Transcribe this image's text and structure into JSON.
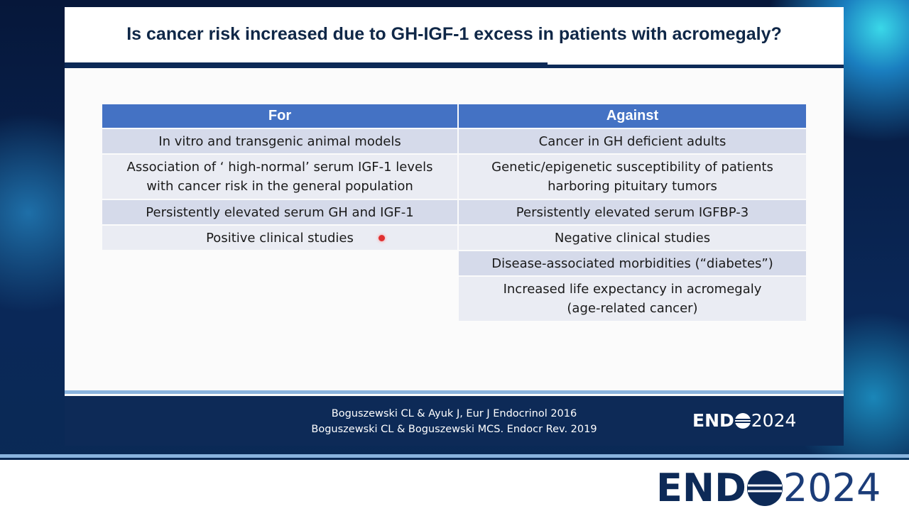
{
  "title": "Is cancer risk increased due to GH-IGF-1 excess in patients with acromegaly?",
  "table": {
    "for": {
      "header": "For",
      "items": [
        [
          "In vitro and transgenic animal models"
        ],
        [
          "Association of ‘ high-normal’ serum IGF-1 levels",
          "with cancer risk in the general population"
        ],
        [
          "Persistently elevated serum GH and IGF-1"
        ],
        [
          "Positive clinical studies"
        ]
      ]
    },
    "against": {
      "header": "Against",
      "items": [
        [
          "Cancer in GH deficient adults"
        ],
        [
          "Genetic/epigenetic susceptibility of patients",
          "harboring pituitary tumors"
        ],
        [
          "Persistently elevated serum IGFBP-3"
        ],
        [
          "Negative clinical studies"
        ],
        [
          "Disease-associated morbidities (“diabetes”)"
        ],
        [
          "Increased life expectancy in acromegaly",
          "(age-related cancer)"
        ]
      ]
    }
  },
  "references": [
    "Boguszewski CL & Ayuk J, Eur J Endocrinol 2016",
    "Boguszewski CL & Boguszewski MCS. Endocr Rev. 2019"
  ],
  "logo": {
    "left": "END",
    "right": "2024"
  }
}
